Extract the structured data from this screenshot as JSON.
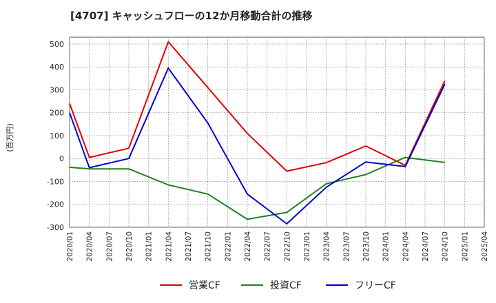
{
  "chart_data": {
    "type": "line",
    "title": "[4707]  キャッシュフローの12か月移動合計の推移",
    "ylabel": "(百万円)",
    "xlabel": "",
    "ylim": [
      -300,
      530
    ],
    "yticks": [
      -300,
      -200,
      -100,
      0,
      100,
      200,
      300,
      400,
      500
    ],
    "categories": [
      "2020/01",
      "2020/04",
      "2020/07",
      "2020/10",
      "2021/01",
      "2021/04",
      "2021/07",
      "2021/10",
      "2022/01",
      "2022/04",
      "2022/07",
      "2022/10",
      "2023/01",
      "2023/04",
      "2023/07",
      "2023/10",
      "2024/01",
      "2024/04",
      "2024/07",
      "2024/10",
      "2025/01",
      "2025/04"
    ],
    "grid": true,
    "legend_position": "bottom",
    "series": [
      {
        "name": "営業CF",
        "color": "#e00000",
        "points": [
          [
            "2020/01",
            240
          ],
          [
            "2020/04",
            5
          ],
          [
            "2020/10",
            45
          ],
          [
            "2021/04",
            510
          ],
          [
            "2021/10",
            310
          ],
          [
            "2022/04",
            110
          ],
          [
            "2022/10",
            -55
          ],
          [
            "2023/04",
            -18
          ],
          [
            "2023/10",
            55
          ],
          [
            "2024/04",
            -30
          ],
          [
            "2024/10",
            340
          ]
        ]
      },
      {
        "name": "投資CF",
        "color": "#208020",
        "points": [
          [
            "2020/01",
            -38
          ],
          [
            "2020/04",
            -45
          ],
          [
            "2020/10",
            -45
          ],
          [
            "2021/04",
            -115
          ],
          [
            "2021/10",
            -155
          ],
          [
            "2022/04",
            -265
          ],
          [
            "2022/10",
            -235
          ],
          [
            "2023/04",
            -110
          ],
          [
            "2023/10",
            -70
          ],
          [
            "2024/04",
            5
          ],
          [
            "2024/10",
            -17
          ]
        ]
      },
      {
        "name": "フリーCF",
        "color": "#0000cc",
        "points": [
          [
            "2020/01",
            200
          ],
          [
            "2020/04",
            -40
          ],
          [
            "2020/10",
            0
          ],
          [
            "2021/04",
            395
          ],
          [
            "2021/10",
            155
          ],
          [
            "2022/04",
            -155
          ],
          [
            "2022/10",
            -285
          ],
          [
            "2023/04",
            -125
          ],
          [
            "2023/10",
            -15
          ],
          [
            "2024/04",
            -35
          ],
          [
            "2024/10",
            325
          ]
        ]
      }
    ]
  }
}
